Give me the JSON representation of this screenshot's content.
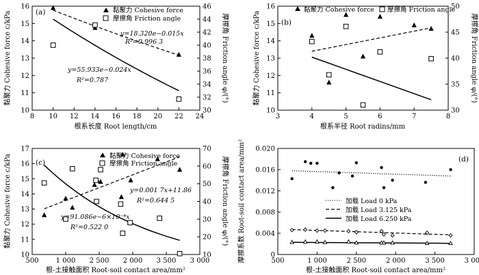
{
  "chart_data": [
    {
      "id": "a",
      "panel_label": "(a)",
      "type": "scatter",
      "xlabel": "根系长度 Root length/cm",
      "ylabel_left": "黏聚力 Cohesive force c/kPa",
      "ylabel_right": "摩擦角 Friction angle φ/(°)",
      "xlim": [
        8,
        24
      ],
      "xticks": [
        8,
        10,
        12,
        14,
        16,
        18,
        20,
        22,
        24
      ],
      "ylim_left": [
        10,
        16
      ],
      "yticks_left": [
        10,
        11,
        12,
        13,
        14,
        15,
        16
      ],
      "ylim_right": [
        30,
        46
      ],
      "yticks_right": [
        30,
        32,
        34,
        36,
        38,
        40,
        42,
        44,
        46
      ],
      "series": [
        {
          "name": "黏聚力 Cohesive force",
          "marker": "triangle",
          "axis": "left",
          "x": [
            10,
            14,
            22
          ],
          "y": [
            15.9,
            14.75,
            13.2
          ]
        },
        {
          "name": "摩擦角 Friction angle",
          "marker": "square",
          "axis": "right",
          "x": [
            10,
            14,
            22
          ],
          "y": [
            40.0,
            43.1,
            31.7
          ]
        }
      ],
      "fits": [
        {
          "axis": "left",
          "style": "dashed",
          "kind": "exp",
          "a": 18.32,
          "b": -0.015,
          "x_range": [
            10,
            22
          ],
          "equation": "y=18.320e−0.015x",
          "r2": "R²=0.996 3"
        },
        {
          "axis": "right",
          "style": "solid",
          "kind": "exp",
          "a": 55.933,
          "b": -0.024,
          "x_range": [
            10,
            22
          ],
          "equation": "y=55.933e−0.024x",
          "r2": "R²=0.787"
        }
      ]
    },
    {
      "id": "b",
      "panel_label": "(b)",
      "type": "scatter",
      "xlabel": "根系半径 Root radins/mm",
      "ylabel_left": "黏聚力 Cohesive force c/kPa",
      "ylabel_right": "摩擦角 Friction angle φ/(°)",
      "xlim": [
        3,
        8
      ],
      "xticks": [
        3,
        4,
        5,
        6,
        7,
        8
      ],
      "ylim_left": [
        10,
        16
      ],
      "yticks_left": [
        10,
        11,
        12,
        13,
        14,
        15,
        16
      ],
      "ylim_right": [
        30,
        50
      ],
      "yticks_right": [
        30,
        35,
        40,
        45,
        50
      ],
      "series": [
        {
          "name": "黏聚力 Cohesive force",
          "marker": "triangle",
          "axis": "left",
          "x": [
            4,
            4.5,
            5,
            5.5,
            6,
            7,
            7.5
          ],
          "y": [
            14.3,
            11.6,
            15.5,
            13.1,
            15.4,
            14.9,
            14.7
          ]
        },
        {
          "name": "摩擦角 Friction angle",
          "marker": "square",
          "axis": "right",
          "x": [
            4,
            4.5,
            5,
            5.5,
            6,
            7.5
          ],
          "y": [
            43.2,
            36.8,
            46.1,
            31.0,
            41.2,
            39.9
          ]
        }
      ],
      "fits": [
        {
          "axis": "left",
          "style": "dashed",
          "kind": "linear",
          "points": [
            [
              4,
              13.4
            ],
            [
              7.5,
              14.75
            ]
          ]
        },
        {
          "axis": "right",
          "style": "solid",
          "kind": "linear",
          "points": [
            [
              4,
              40.2
            ],
            [
              7.5,
              32.0
            ]
          ]
        }
      ]
    },
    {
      "id": "c",
      "panel_label": "(c)",
      "type": "scatter",
      "xlabel": "根-土接触面积 Root-soil contact area/mm²",
      "ylabel_left": "黏聚力 Cohesive force c/kPa",
      "ylabel_right": "摩擦角 Friction angle φ/(°)",
      "xlim": [
        500,
        3000
      ],
      "xticks": [
        500,
        1000,
        1500,
        2000,
        2500,
        3000
      ],
      "ylim_left": [
        10,
        17
      ],
      "yticks_left": [
        10,
        11,
        12,
        13,
        14,
        15,
        16,
        17
      ],
      "ylim_right": [
        10,
        70
      ],
      "yticks_right": [
        10,
        20,
        30,
        40,
        50,
        60,
        70
      ],
      "series": [
        {
          "name": "黏聚力 Cohesive force",
          "marker": "triangle",
          "axis": "left",
          "x": [
            680,
            1000,
            1100,
            1430,
            1470,
            1520,
            1830,
            1850,
            1970,
            2370,
            2700
          ],
          "y": [
            12.6,
            13.7,
            13.1,
            14.6,
            14.9,
            14.8,
            13.8,
            16.6,
            14.9,
            16.3,
            15.6
          ]
        },
        {
          "name": "摩擦角 Friction angle",
          "marker": "square",
          "axis": "right",
          "x": [
            680,
            1000,
            1100,
            1450,
            1460,
            1520,
            1820,
            1850,
            1960,
            2400,
            2700
          ],
          "y": [
            50.5,
            30.0,
            58.5,
            52.0,
            40.0,
            58.0,
            38.5,
            22.0,
            28.0,
            30.5,
            10.5
          ]
        }
      ],
      "fits": [
        {
          "axis": "left",
          "style": "dashed",
          "kind": "linear",
          "slope": 0.0017,
          "intercept": 11.86,
          "x_range": [
            680,
            2700
          ],
          "equation": "y=0.001 7x+11.86",
          "r2": "R²=0.644 5"
        },
        {
          "axis": "right",
          "style": "solid",
          "kind": "exp",
          "a": 91.086,
          "b": -0.0006,
          "x_range": [
            680,
            2700
          ],
          "equation": "y=91.086e−6×10⁻⁴x",
          "r2": "R²=0.522 0"
        }
      ]
    },
    {
      "id": "d",
      "panel_label": "(d)",
      "type": "scatter",
      "xlabel": "根-土接触面积 Root-soil contact area/mm²",
      "ylabel": "摩擦系数 Root-soil contact area/mm²",
      "xlim": [
        500,
        3000
      ],
      "xticks": [
        500,
        1000,
        1500,
        2000,
        2500,
        3000
      ],
      "ylim": [
        0,
        0.02
      ],
      "yticks": [
        0.0,
        0.004,
        0.008,
        0.012,
        0.016,
        0.02
      ],
      "ytick_labels": [
        "0",
        "0.004",
        "0.008",
        "0.012",
        "0.016",
        "0.020"
      ],
      "series": [
        {
          "name": "加载 Load 0 kPa",
          "marker": "circle",
          "line": "dotted",
          "x": [
            680,
            850,
            920,
            1000,
            1200,
            1280,
            1450,
            1500,
            1820,
            1850,
            1960,
            2380,
            2700
          ],
          "y": [
            0.0143,
            0.0175,
            0.0172,
            0.0172,
            0.0126,
            0.0154,
            0.0148,
            0.0173,
            0.0164,
            0.0126,
            0.014,
            0.0136,
            0.016
          ]
        },
        {
          "name": "加载 Load 3.125 kPa",
          "marker": "diamond",
          "line": "dashed",
          "x": [
            680,
            850,
            1000,
            1100,
            1400,
            1500,
            1820,
            1850,
            1960,
            2400,
            2700
          ],
          "y": [
            0.0046,
            0.0047,
            0.0045,
            0.0045,
            0.0044,
            0.0042,
            0.0044,
            0.0038,
            0.0036,
            0.0041,
            0.0036
          ]
        },
        {
          "name": "加载 Load 6.250 kPa",
          "marker": "triangle-open",
          "line": "solid",
          "x": [
            680,
            850,
            1000,
            1100,
            1400,
            1500,
            1820,
            1850,
            1960,
            2400,
            2700
          ],
          "y": [
            0.0023,
            0.0024,
            0.0024,
            0.0023,
            0.0024,
            0.0022,
            0.0022,
            0.0022,
            0.0022,
            0.0021,
            0.0021
          ]
        }
      ],
      "fits": [
        {
          "style": "dotted",
          "kind": "linear",
          "points": [
            [
              680,
              0.0158
            ],
            [
              2700,
              0.0148
            ]
          ]
        },
        {
          "style": "dashed",
          "kind": "linear",
          "points": [
            [
              680,
              0.0047
            ],
            [
              2700,
              0.0037
            ]
          ]
        },
        {
          "style": "solid",
          "kind": "linear",
          "points": [
            [
              680,
              0.0023
            ],
            [
              2700,
              0.0021
            ]
          ]
        }
      ]
    }
  ]
}
